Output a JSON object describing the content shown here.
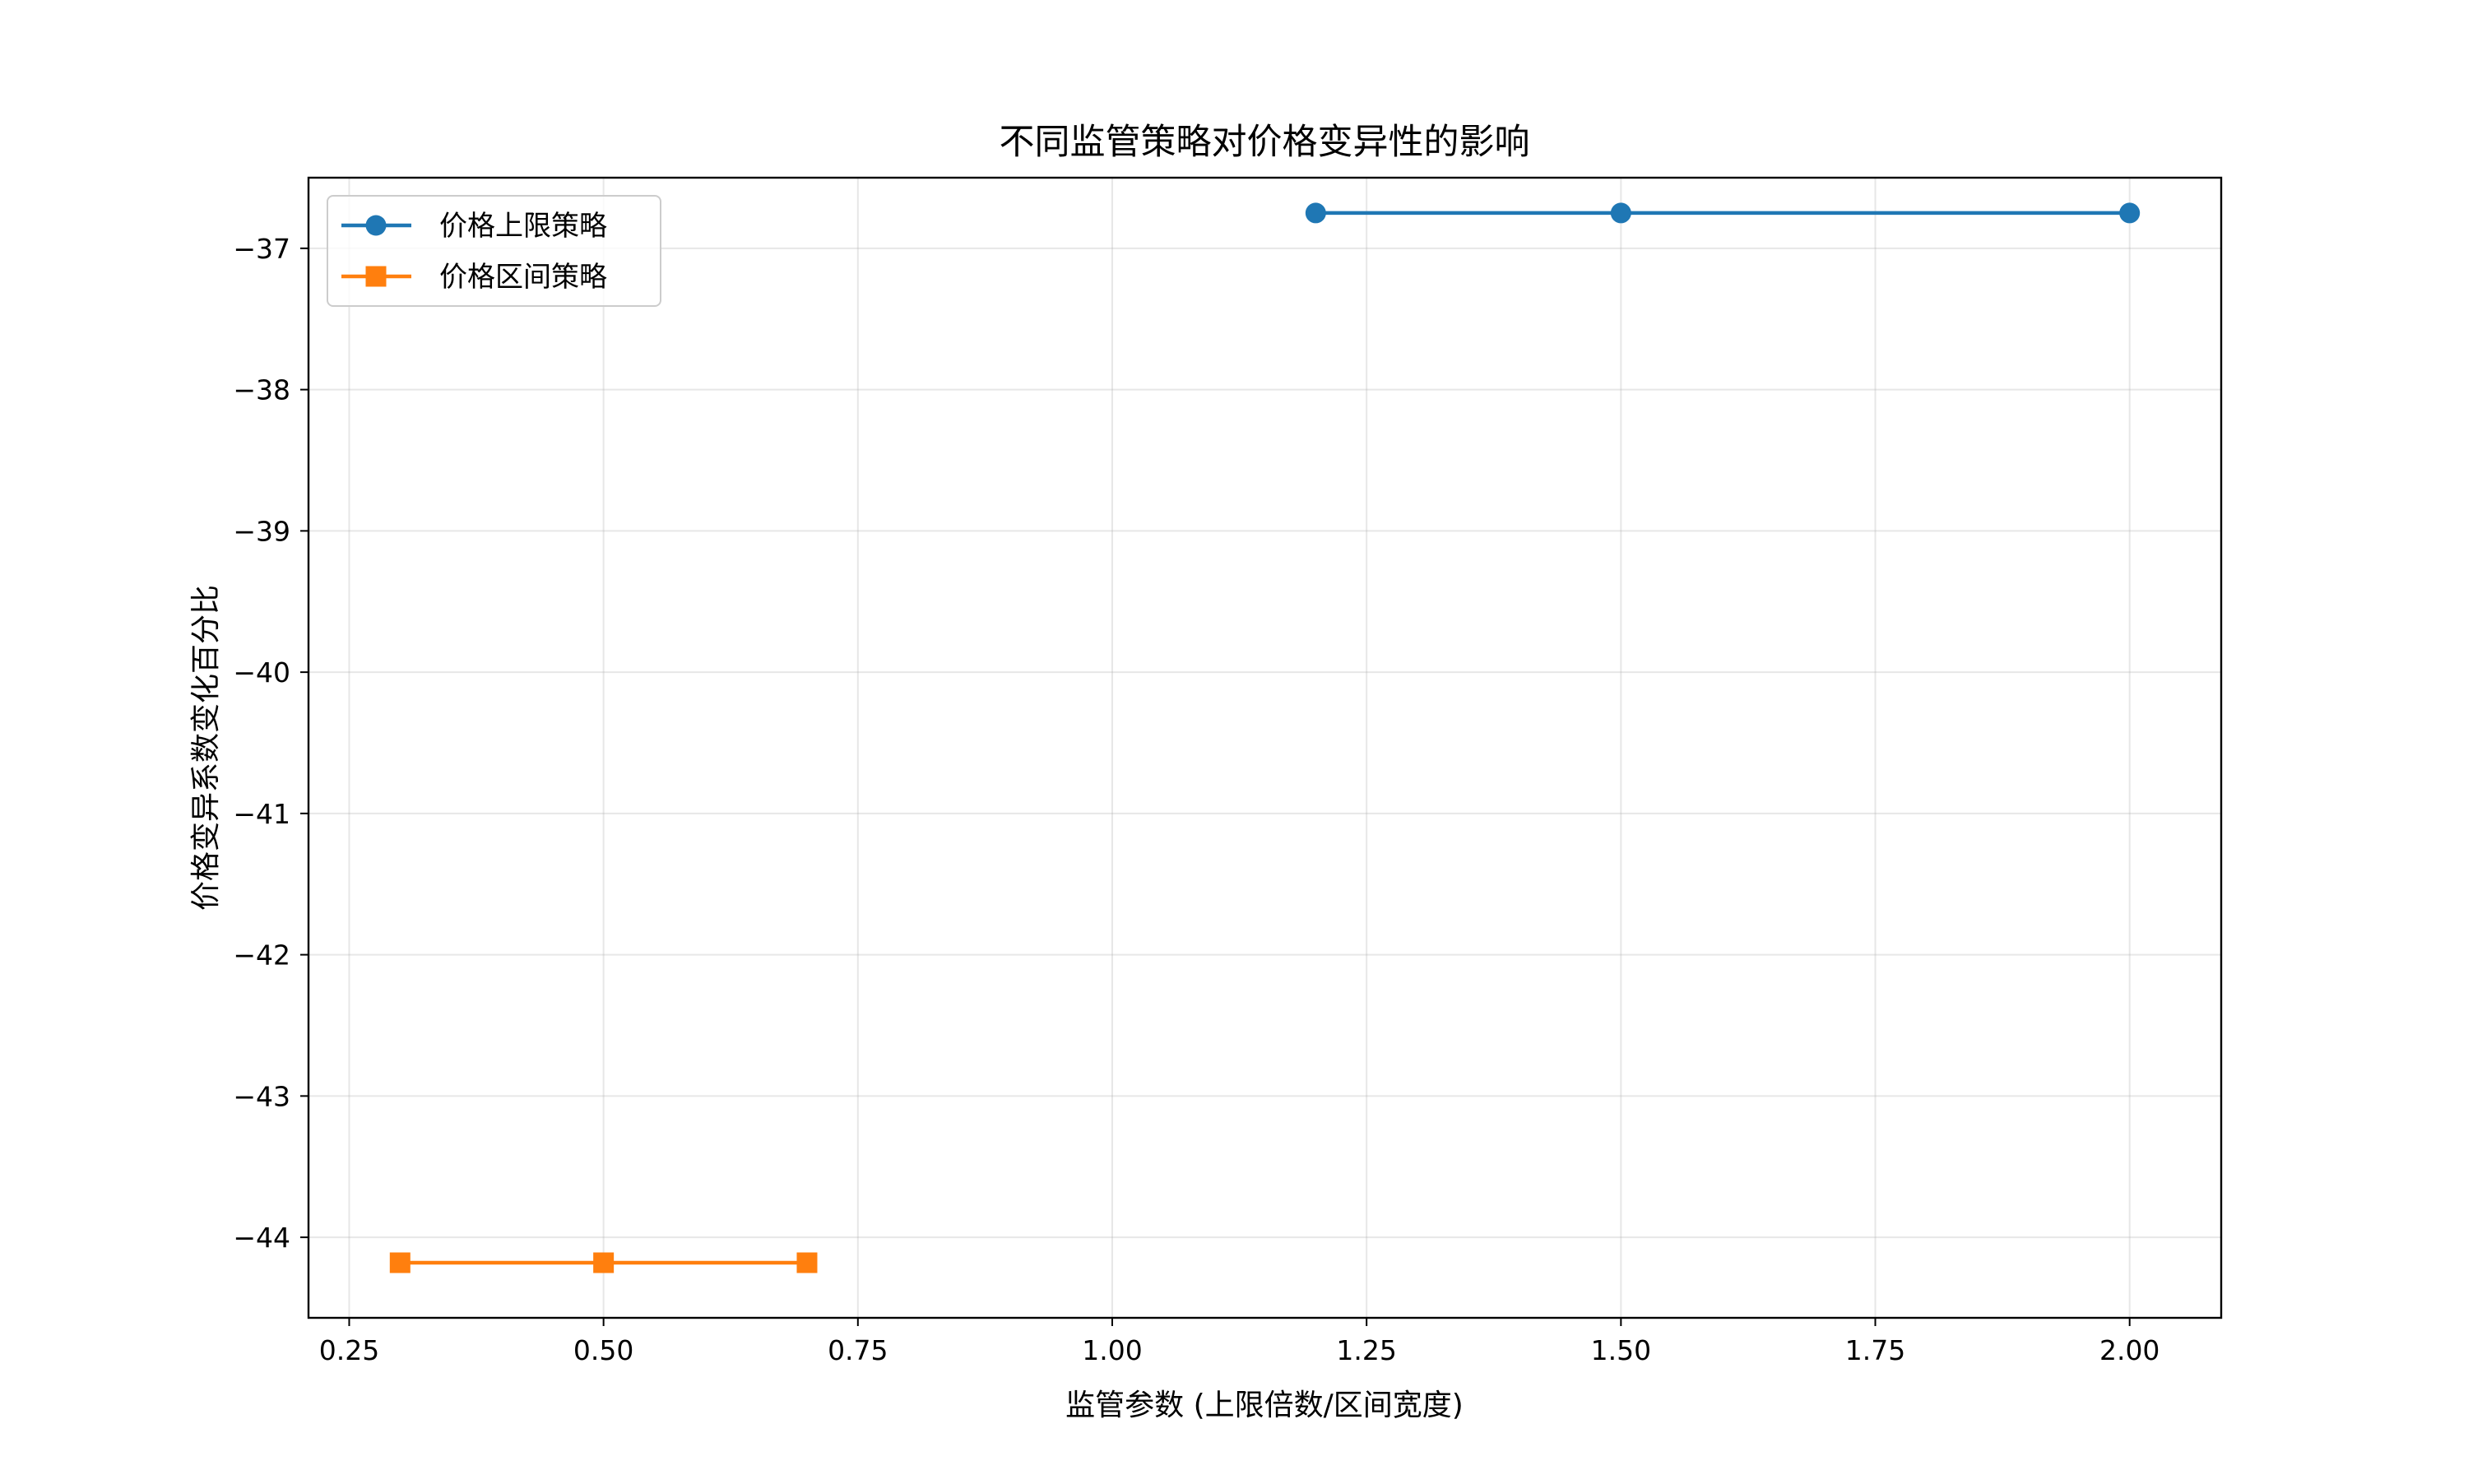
{
  "chart_data": {
    "type": "line",
    "title": "不同监管策略对价格变异性的影响",
    "xlabel": "监管参数 (上限倍数/区间宽度)",
    "ylabel": "价格变异系数变化百分比",
    "xlim": [
      0.21,
      2.09
    ],
    "ylim": [
      -44.57,
      -36.5
    ],
    "xticks": [
      0.25,
      0.5,
      0.75,
      1.0,
      1.25,
      1.5,
      1.75,
      2.0
    ],
    "xtick_labels": [
      "0.25",
      "0.50",
      "0.75",
      "1.00",
      "1.25",
      "1.50",
      "1.75",
      "2.00"
    ],
    "yticks": [
      -37,
      -38,
      -39,
      -40,
      -41,
      -42,
      -43,
      -44
    ],
    "ytick_labels": [
      "−37",
      "−38",
      "−39",
      "−40",
      "−41",
      "−42",
      "−43",
      "−44"
    ],
    "grid": true,
    "legend_position": "upper-left",
    "series": [
      {
        "name": "价格上限策略",
        "color": "#1f77b4",
        "marker": "circle",
        "x": [
          1.2,
          1.5,
          2.0
        ],
        "y": [
          -36.75,
          -36.75,
          -36.75
        ]
      },
      {
        "name": "价格区间策略",
        "color": "#ff7f0e",
        "marker": "square",
        "x": [
          0.3,
          0.5,
          0.7
        ],
        "y": [
          -44.18,
          -44.18,
          -44.18
        ]
      }
    ]
  }
}
